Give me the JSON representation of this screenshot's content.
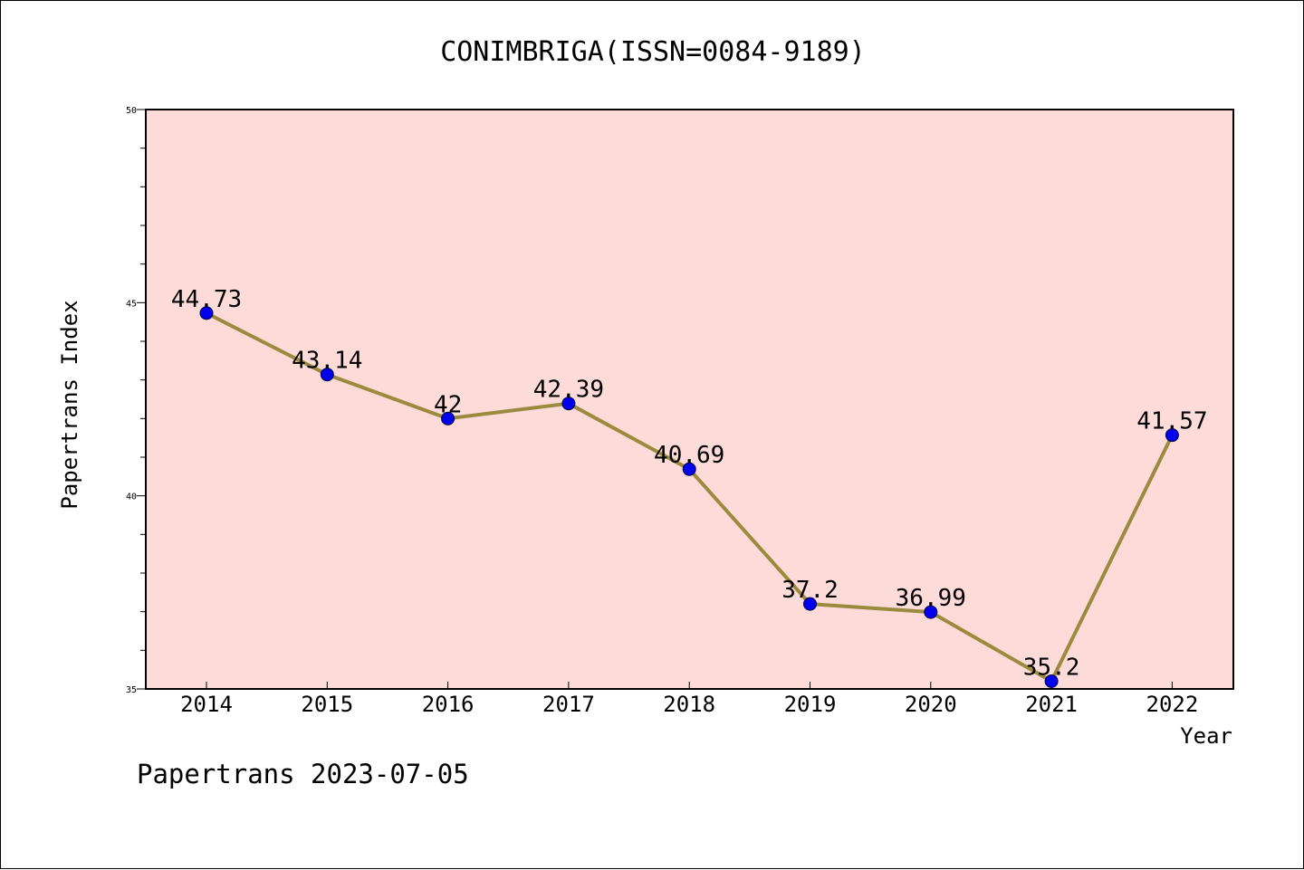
{
  "chart_data": {
    "type": "line",
    "title": "CONIMBRIGA(ISSN=0084-9189)",
    "xlabel": "Year",
    "ylabel": "Papertrans Index",
    "categories": [
      "2014",
      "2015",
      "2016",
      "2017",
      "2018",
      "2019",
      "2020",
      "2021",
      "2022"
    ],
    "series": [
      {
        "values": [
          44.73,
          43.14,
          42,
          42.39,
          40.69,
          37.2,
          36.99,
          35.2,
          41.57
        ],
        "labels": [
          "44.73",
          "43.14",
          "42",
          "42.39",
          "40.69",
          "37.2",
          "36.99",
          "35.2",
          "41.57"
        ]
      }
    ],
    "ylim": [
      35,
      50
    ],
    "yticks": [
      35,
      40,
      45,
      50
    ],
    "grid": false,
    "legend": "none",
    "colors": {
      "plot_background": "#fddbd8",
      "line": "#9c8a3e",
      "marker": "#0000ee"
    }
  },
  "footer": "Papertrans 2023-07-05"
}
